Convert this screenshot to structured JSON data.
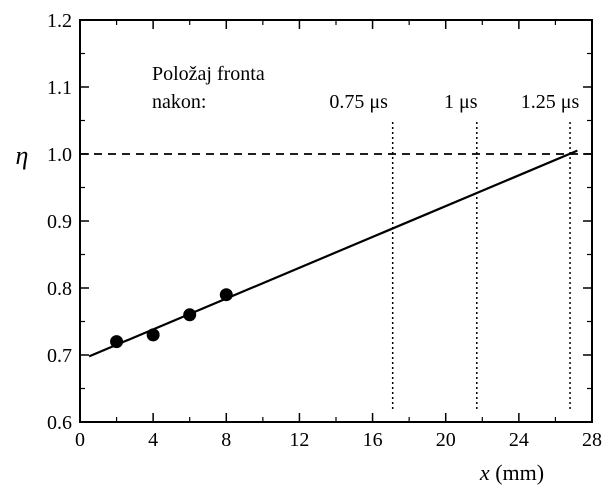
{
  "chart_data": {
    "type": "scatter",
    "title": "",
    "xlabel_var": "x",
    "xlabel_unit": " (mm)",
    "ylabel": "η",
    "xlim": [
      0,
      28
    ],
    "ylim": [
      0.6,
      1.2
    ],
    "x_ticks": [
      0,
      4,
      8,
      12,
      16,
      20,
      24,
      28
    ],
    "y_ticks": [
      0.6,
      0.7,
      0.8,
      0.9,
      1.0,
      1.1,
      1.2
    ],
    "x_tick_labels": [
      "0",
      "4",
      "8",
      "12",
      "16",
      "20",
      "24",
      "28"
    ],
    "y_tick_labels": [
      "0.6",
      "0.7",
      "0.8",
      "0.9",
      "1.0",
      "1.1",
      "1.2"
    ],
    "series": [
      {
        "kind": "points",
        "x": [
          2,
          4,
          6,
          8
        ],
        "y": [
          0.72,
          0.73,
          0.76,
          0.79
        ]
      },
      {
        "kind": "fit-line",
        "x": [
          0.5,
          27.2
        ],
        "y": [
          0.698,
          1.005
        ]
      }
    ],
    "reference_line": {
      "y": 1.0,
      "style": "dashed"
    },
    "front_markers": [
      {
        "x": 17.1,
        "label": "0.75 μs"
      },
      {
        "x": 21.7,
        "label": "1 μs"
      },
      {
        "x": 26.8,
        "label": "1.25 μs"
      }
    ],
    "annotation": {
      "line1": "Položaj fronta",
      "line2": "nakon:"
    }
  }
}
